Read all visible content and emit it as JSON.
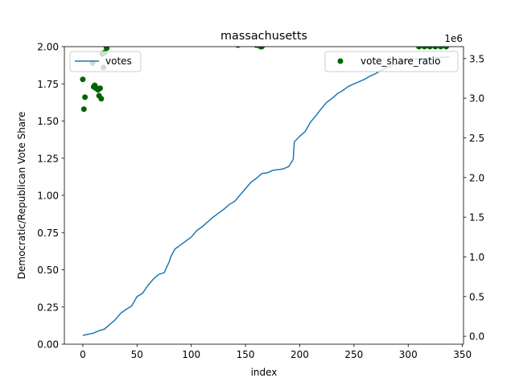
{
  "chart_data": {
    "type": "line",
    "title": "massachusetts",
    "xlabel": "index",
    "ylabel": "Democratic/Republican Vote Share",
    "y2_offset_label": "1e6",
    "xlim": [
      -17,
      351
    ],
    "ylim": [
      0,
      2.0
    ],
    "y2lim": [
      -100000,
      3650000
    ],
    "x_ticks": [
      0,
      50,
      100,
      150,
      200,
      250,
      300,
      350
    ],
    "x_tick_labels": [
      "0",
      "50",
      "100",
      "150",
      "200",
      "250",
      "300",
      "350"
    ],
    "y_ticks": [
      0,
      0.25,
      0.5,
      0.75,
      1.0,
      1.25,
      1.5,
      1.75,
      2.0
    ],
    "y_tick_labels": [
      "0.00",
      "0.25",
      "0.50",
      "0.75",
      "1.00",
      "1.25",
      "1.50",
      "1.75",
      "2.00"
    ],
    "y2_ticks": [
      0,
      500000,
      1000000,
      1500000,
      2000000,
      2500000,
      3000000,
      3500000
    ],
    "y2_tick_labels": [
      "0.0",
      "0.5",
      "1.0",
      "1.5",
      "2.0",
      "2.5",
      "3.0",
      "3.5"
    ],
    "grid": false,
    "series": [
      {
        "name": "votes",
        "kind": "line",
        "axis": "right",
        "color": "#1f77b4",
        "legend_position": "upper-left",
        "x": [
          0,
          5,
          10,
          15,
          20,
          25,
          30,
          35,
          40,
          45,
          50,
          55,
          60,
          65,
          70,
          75,
          80,
          81,
          85,
          90,
          95,
          100,
          105,
          110,
          115,
          120,
          125,
          130,
          135,
          140,
          145,
          150,
          155,
          160,
          165,
          170,
          175,
          180,
          185,
          190,
          194,
          195,
          200,
          205,
          210,
          215,
          220,
          225,
          230,
          235,
          240,
          245,
          250,
          255,
          260,
          265,
          270,
          275,
          280,
          285,
          290,
          295,
          300,
          305,
          310,
          315,
          320,
          325,
          330,
          335,
          338
        ],
        "values": [
          10000,
          25000,
          40000,
          70000,
          90000,
          150000,
          210000,
          290000,
          340000,
          380000,
          500000,
          540000,
          640000,
          720000,
          780000,
          800000,
          950000,
          1000000,
          1100000,
          1150000,
          1200000,
          1250000,
          1330000,
          1380000,
          1440000,
          1500000,
          1550000,
          1600000,
          1660000,
          1700000,
          1780000,
          1860000,
          1940000,
          1990000,
          2050000,
          2060000,
          2090000,
          2100000,
          2110000,
          2140000,
          2230000,
          2450000,
          2520000,
          2580000,
          2700000,
          2780000,
          2870000,
          2950000,
          3000000,
          3060000,
          3100000,
          3150000,
          3180000,
          3210000,
          3240000,
          3280000,
          3310000,
          3350000,
          3380000,
          3410000,
          3440000,
          3460000,
          3480000,
          3495000,
          3500000,
          3500000,
          3505000,
          3510000,
          3515000,
          3520000,
          3525000
        ]
      },
      {
        "name": "vote_share_ratio",
        "kind": "scatter",
        "axis": "left",
        "color": "#006400",
        "legend_position": "upper-right",
        "x": [
          0,
          1,
          2,
          9,
          10,
          11,
          12,
          13,
          14,
          15,
          16,
          17,
          18,
          19,
          20,
          21,
          22,
          143,
          160,
          162,
          164,
          165,
          166,
          310,
          315,
          320,
          325,
          330,
          335
        ],
        "values": [
          1.78,
          1.58,
          1.66,
          1.89,
          1.73,
          1.74,
          1.72,
          1.72,
          1.71,
          1.67,
          1.72,
          1.65,
          1.95,
          1.86,
          1.96,
          2.01,
          1.99,
          2.01,
          2.01,
          2.01,
          2.0,
          2.0,
          2.01,
          2.0,
          2.0,
          2.0,
          2.0,
          2.0,
          2.0
        ]
      }
    ]
  }
}
